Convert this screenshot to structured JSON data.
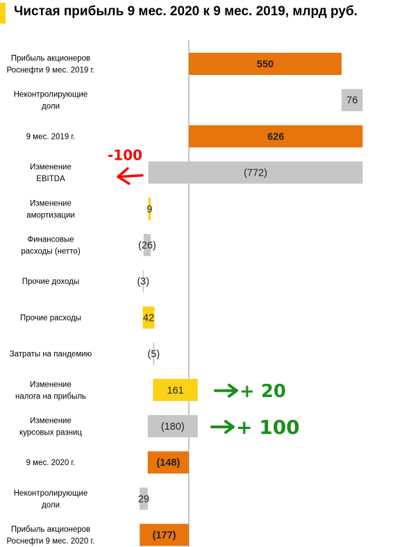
{
  "title": "Чистая прибыль 9 мес. 2020 к 9 мес. 2019, млрд руб.",
  "colors": {
    "accent": "#fcd116",
    "orange": "#e8740c",
    "gray": "#c6c6c6",
    "yellow": "#fcd116",
    "axis": "#8c8c8c",
    "note_red": "#ff0000",
    "note_green": "#1b8f1b"
  },
  "chart_data": {
    "type": "bar",
    "orientation": "horizontal-waterfall",
    "xlim": [
      -120,
      640
    ],
    "rows": [
      {
        "category": "Прибыль акционеров Роснефти 9 мес. 2019 г.",
        "label_lines": [
          "Прибыль акционеров",
          "Роснефти 9 мес. 2019 г."
        ],
        "start": 0,
        "end": 550,
        "value_label": "550",
        "color": "orange",
        "bold": true
      },
      {
        "category": "Неконтролирующие доли",
        "label_lines": [
          "Неконтролирующие",
          "доли"
        ],
        "start": 550,
        "end": 626,
        "value_label": "76",
        "color": "gray",
        "bold": false
      },
      {
        "category": "9 мес. 2019 г.",
        "label_lines": [
          "9 мес. 2019 г."
        ],
        "start": 0,
        "end": 626,
        "value_label": "626",
        "color": "orange",
        "bold": true
      },
      {
        "category": "Изменение EBITDA",
        "label_lines": [
          "Изменение",
          "EBITDA"
        ],
        "start": 626,
        "end": -146,
        "value_label": "(772)",
        "color": "gray",
        "bold": false
      },
      {
        "category": "Изменение амортизации",
        "label_lines": [
          "Изменение",
          "амортизации"
        ],
        "start": -146,
        "end": -137,
        "value_label": "9",
        "color": "yellow",
        "bold": false
      },
      {
        "category": "Финансовые расходы (нетто)",
        "label_lines": [
          "Финансовые",
          "расходы (нетто)"
        ],
        "start": -137,
        "end": -163,
        "value_label": "(26)",
        "color": "gray",
        "bold": false
      },
      {
        "category": "Прочие доходы",
        "label_lines": [
          "Прочие доходы"
        ],
        "start": -163,
        "end": -166,
        "value_label": "(3)",
        "color": "gray",
        "bold": false
      },
      {
        "category": "Прочие расходы",
        "label_lines": [
          "Прочие расходы"
        ],
        "start": -166,
        "end": -124,
        "value_label": "42",
        "color": "yellow",
        "bold": false
      },
      {
        "category": "Затраты на пандемию",
        "label_lines": [
          "Затраты на пандемию"
        ],
        "start": -124,
        "end": -129,
        "value_label": "(5)",
        "color": "gray",
        "bold": false
      },
      {
        "category": "Изменение налога на прибыль",
        "label_lines": [
          "Изменение",
          "налога на прибыль"
        ],
        "start": -129,
        "end": 32,
        "value_label": "161",
        "color": "yellow",
        "bold": false
      },
      {
        "category": "Изменение курсовых разниц",
        "label_lines": [
          "Изменение",
          "курсовых разниц"
        ],
        "start": 32,
        "end": -148,
        "value_label": "(180)",
        "color": "gray",
        "bold": false
      },
      {
        "category": "9 мес. 2020 г.",
        "label_lines": [
          "9 мес. 2020 г."
        ],
        "start": 0,
        "end": -148,
        "value_label": "(148)",
        "color": "orange",
        "bold": true
      },
      {
        "category": "Неконтролирующие доли",
        "label_lines": [
          "Неконтролирующие",
          "доли"
        ],
        "start": -148,
        "end": -177,
        "value_label": "29",
        "color": "gray",
        "bold": false
      },
      {
        "category": "Прибыль акционеров Роснефти 9 мес. 2020 г.",
        "label_lines": [
          "Прибыль акционеров",
          "Роснефти 9 мес. 2020 г."
        ],
        "start": 0,
        "end": -177,
        "value_label": "(177)",
        "color": "orange",
        "bold": true
      }
    ],
    "annotations": [
      {
        "text": "-100",
        "row": 3,
        "color": "note_red"
      },
      {
        "text": "+ 20",
        "row": 9,
        "color": "note_green"
      },
      {
        "text": "+ 100",
        "row": 10,
        "color": "note_green"
      }
    ]
  }
}
